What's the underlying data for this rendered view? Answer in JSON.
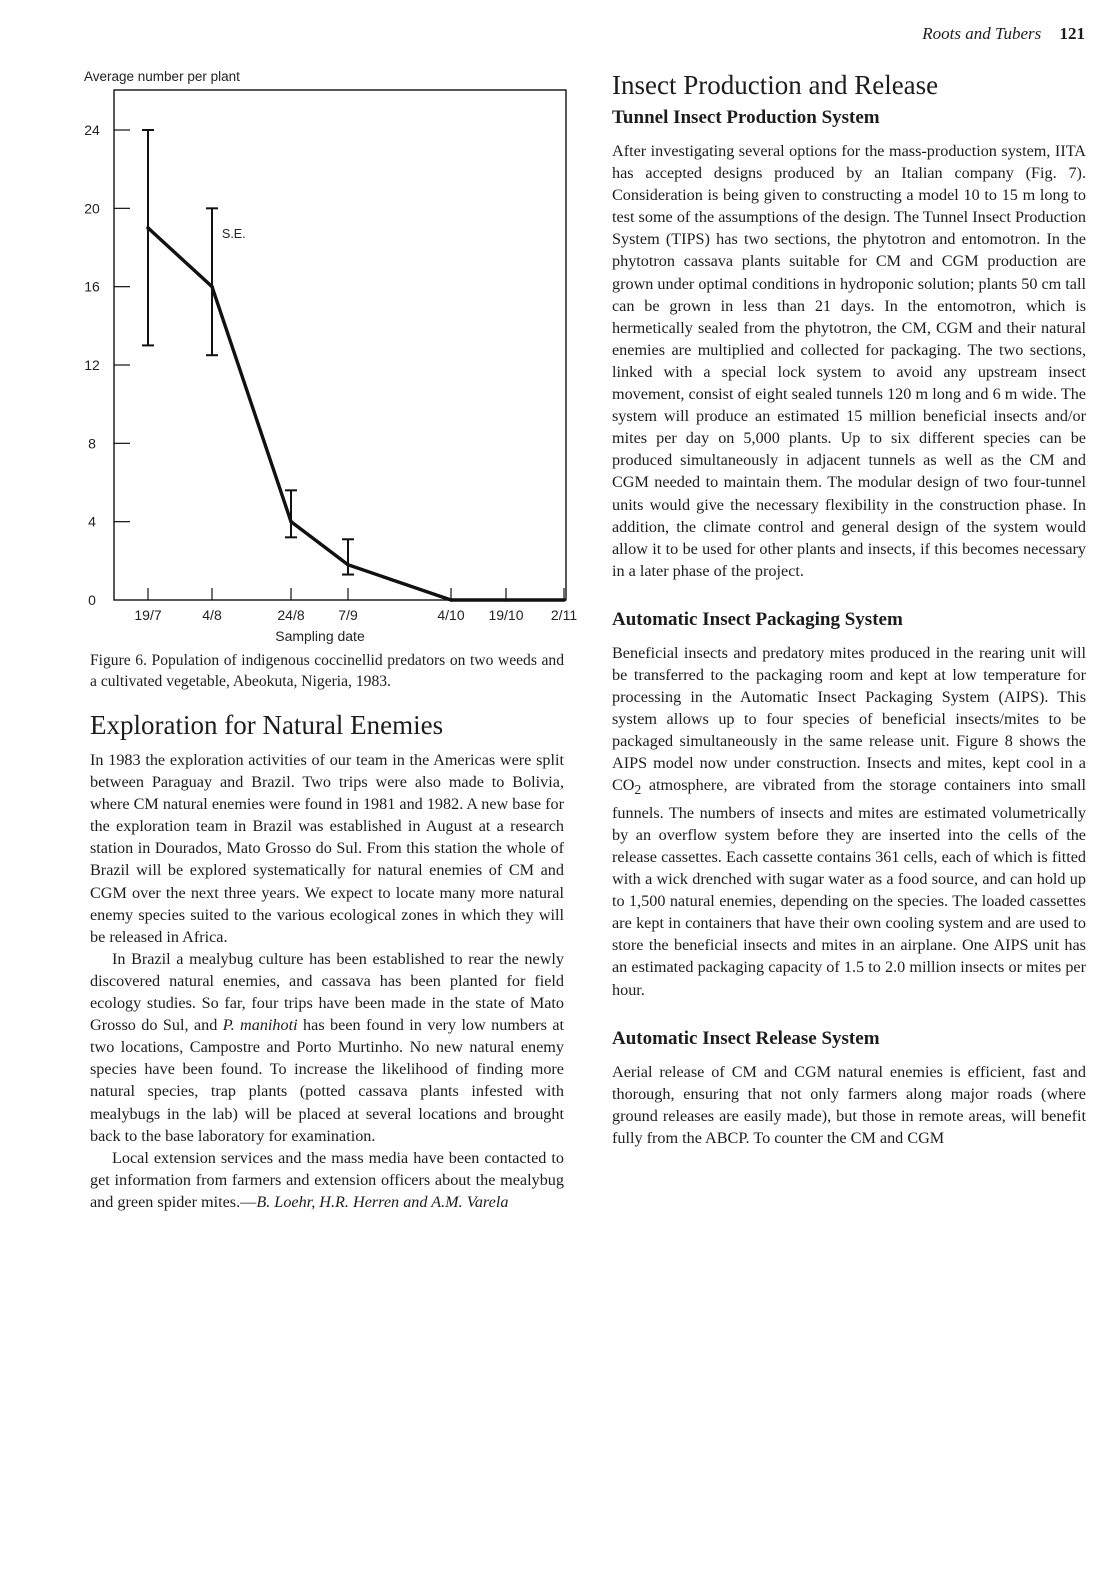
{
  "running_head": {
    "title": "Roots and Tubers",
    "page": "121"
  },
  "figure": {
    "caption": "Figure 6. Population of indigenous coccinellid predators on two weeds and a cultivated vegetable, Abeokuta, Nigeria, 1983."
  },
  "chart_data": {
    "type": "line",
    "ylabel": "Average number per plant",
    "xlabel": "Sampling date",
    "ylim": [
      0,
      24
    ],
    "yticks": [
      "0",
      "4",
      "8",
      "12",
      "16",
      "20",
      "24"
    ],
    "x": [
      "19/7",
      "4/8",
      "24/8",
      "7/9",
      "4/10",
      "19/10",
      "2/11"
    ],
    "series": [
      {
        "values": [
          19,
          16,
          4,
          1.8,
          0,
          0,
          0
        ],
        "error": [
          [
            13,
            24
          ],
          [
            12.5,
            20
          ],
          [
            3.2,
            5.6
          ],
          [
            1.3,
            3.1
          ],
          null,
          null,
          null
        ]
      }
    ],
    "annotations": [
      "S.E."
    ],
    "grid": false,
    "color": "#111111"
  },
  "left": {
    "section_title": "Exploration for Natural Enemies",
    "paragraphs": [
      "In 1983 the exploration activities of our team in the Americas were split between Paraguay and Brazil. Two trips were also made to Bolivia, where CM natural enemies were found in 1981 and 1982. A new base for the exploration team in Brazil was established in August at a research station in Dourados, Mato Grosso do Sul. From this station the whole of Brazil will be explored systematically for natural enemies of CM and CGM over the next three years. We expect to locate many more natural enemy species suited to the various ecological zones in which they will be released in Africa."
    ],
    "p2_before": "In Brazil a mealybug culture has been established to rear the newly discovered natural enemies, and cassava has been planted for field ecology studies. So far, four trips have been made in the state of Mato Grosso do Sul, and ",
    "p2_italic": "P. manihoti",
    "p2_after": " has been found in very low numbers at two locations, Campostre and Porto Murtinho. No new natural enemy species have been found. To increase the likelihood of finding more natural species, trap plants (potted cassava plants infested with mealybugs in the lab) will be placed at several locations and brought back to the base laboratory for examination.",
    "p3_text": "Local extension services and the mass media have been contacted to get information from farmers and extension officers about the mealybug and green spider mites.—",
    "p3_sig": "B. Loehr, H.R. Herren and A.M. Varela"
  },
  "right": {
    "section_title": "Insect Production and Release",
    "sub1": "Tunnel Insect Production System",
    "p1": "After investigating several options for the mass-production system, IITA has accepted designs produced by an Italian company (Fig. 7). Consideration is being given to constructing a model 10 to 15 m long to test some of the assumptions of the design. The Tunnel Insect Production System (TIPS) has two sections, the phytotron and entomotron. In the phytotron cassava plants suitable for CM and CGM production are grown under optimal conditions in hydroponic solution; plants 50 cm tall can be grown in less than 21 days. In the entomotron, which is hermetically sealed from the phytotron, the CM, CGM and their natural enemies are multiplied and collected for packaging. The two sections, linked with a special lock system to avoid any upstream insect movement, consist of eight sealed tunnels 120 m long and 6 m wide. The system will produce an estimated 15 million beneficial insects and/or mites per day on 5,000 plants. Up to six different species can be produced simultaneously in adjacent tunnels as well as the CM and CGM needed to maintain them. The modular design of two four-tunnel units would give the necessary flexibility in the construction phase. In addition, the climate control and general design of the system would allow it to be used for other plants and insects, if this becomes necessary in a later phase of the project.",
    "sub2": "Automatic Insect Packaging System",
    "p2a": "Beneficial insects and predatory mites produced in the rearing unit will be transferred to the packaging room and kept at low temperature for processing in the Automatic Insect Packaging System (AIPS). This system allows up to four species of beneficial insects/mites to be packaged simultaneously in the same release unit. Figure 8 shows the AIPS model now under construction. Insects and mites, kept cool in a CO",
    "p2sub": "2",
    "p2b": " atmosphere, are vibrated from the storage containers into small funnels. The numbers of insects and mites are estimated volumetrically by an overflow system before they are inserted into the cells of the release cassettes. Each cassette contains 361 cells, each of which is fitted with a wick drenched with sugar water as a food source, and can hold up to 1,500 natural enemies, depending on the species. The loaded cassettes are kept in containers that have their own cooling system and are used to store the beneficial insects and mites in an airplane. One AIPS unit has an estimated packaging capacity of 1.5 to 2.0 million insects or mites per hour.",
    "sub3": "Automatic Insect Release System",
    "p3": "Aerial release of CM and CGM natural enemies is efficient, fast and thorough, ensuring that not only farmers along major roads (where ground releases are easily made), but those in remote areas, will benefit fully from the ABCP. To counter the CM and CGM"
  }
}
